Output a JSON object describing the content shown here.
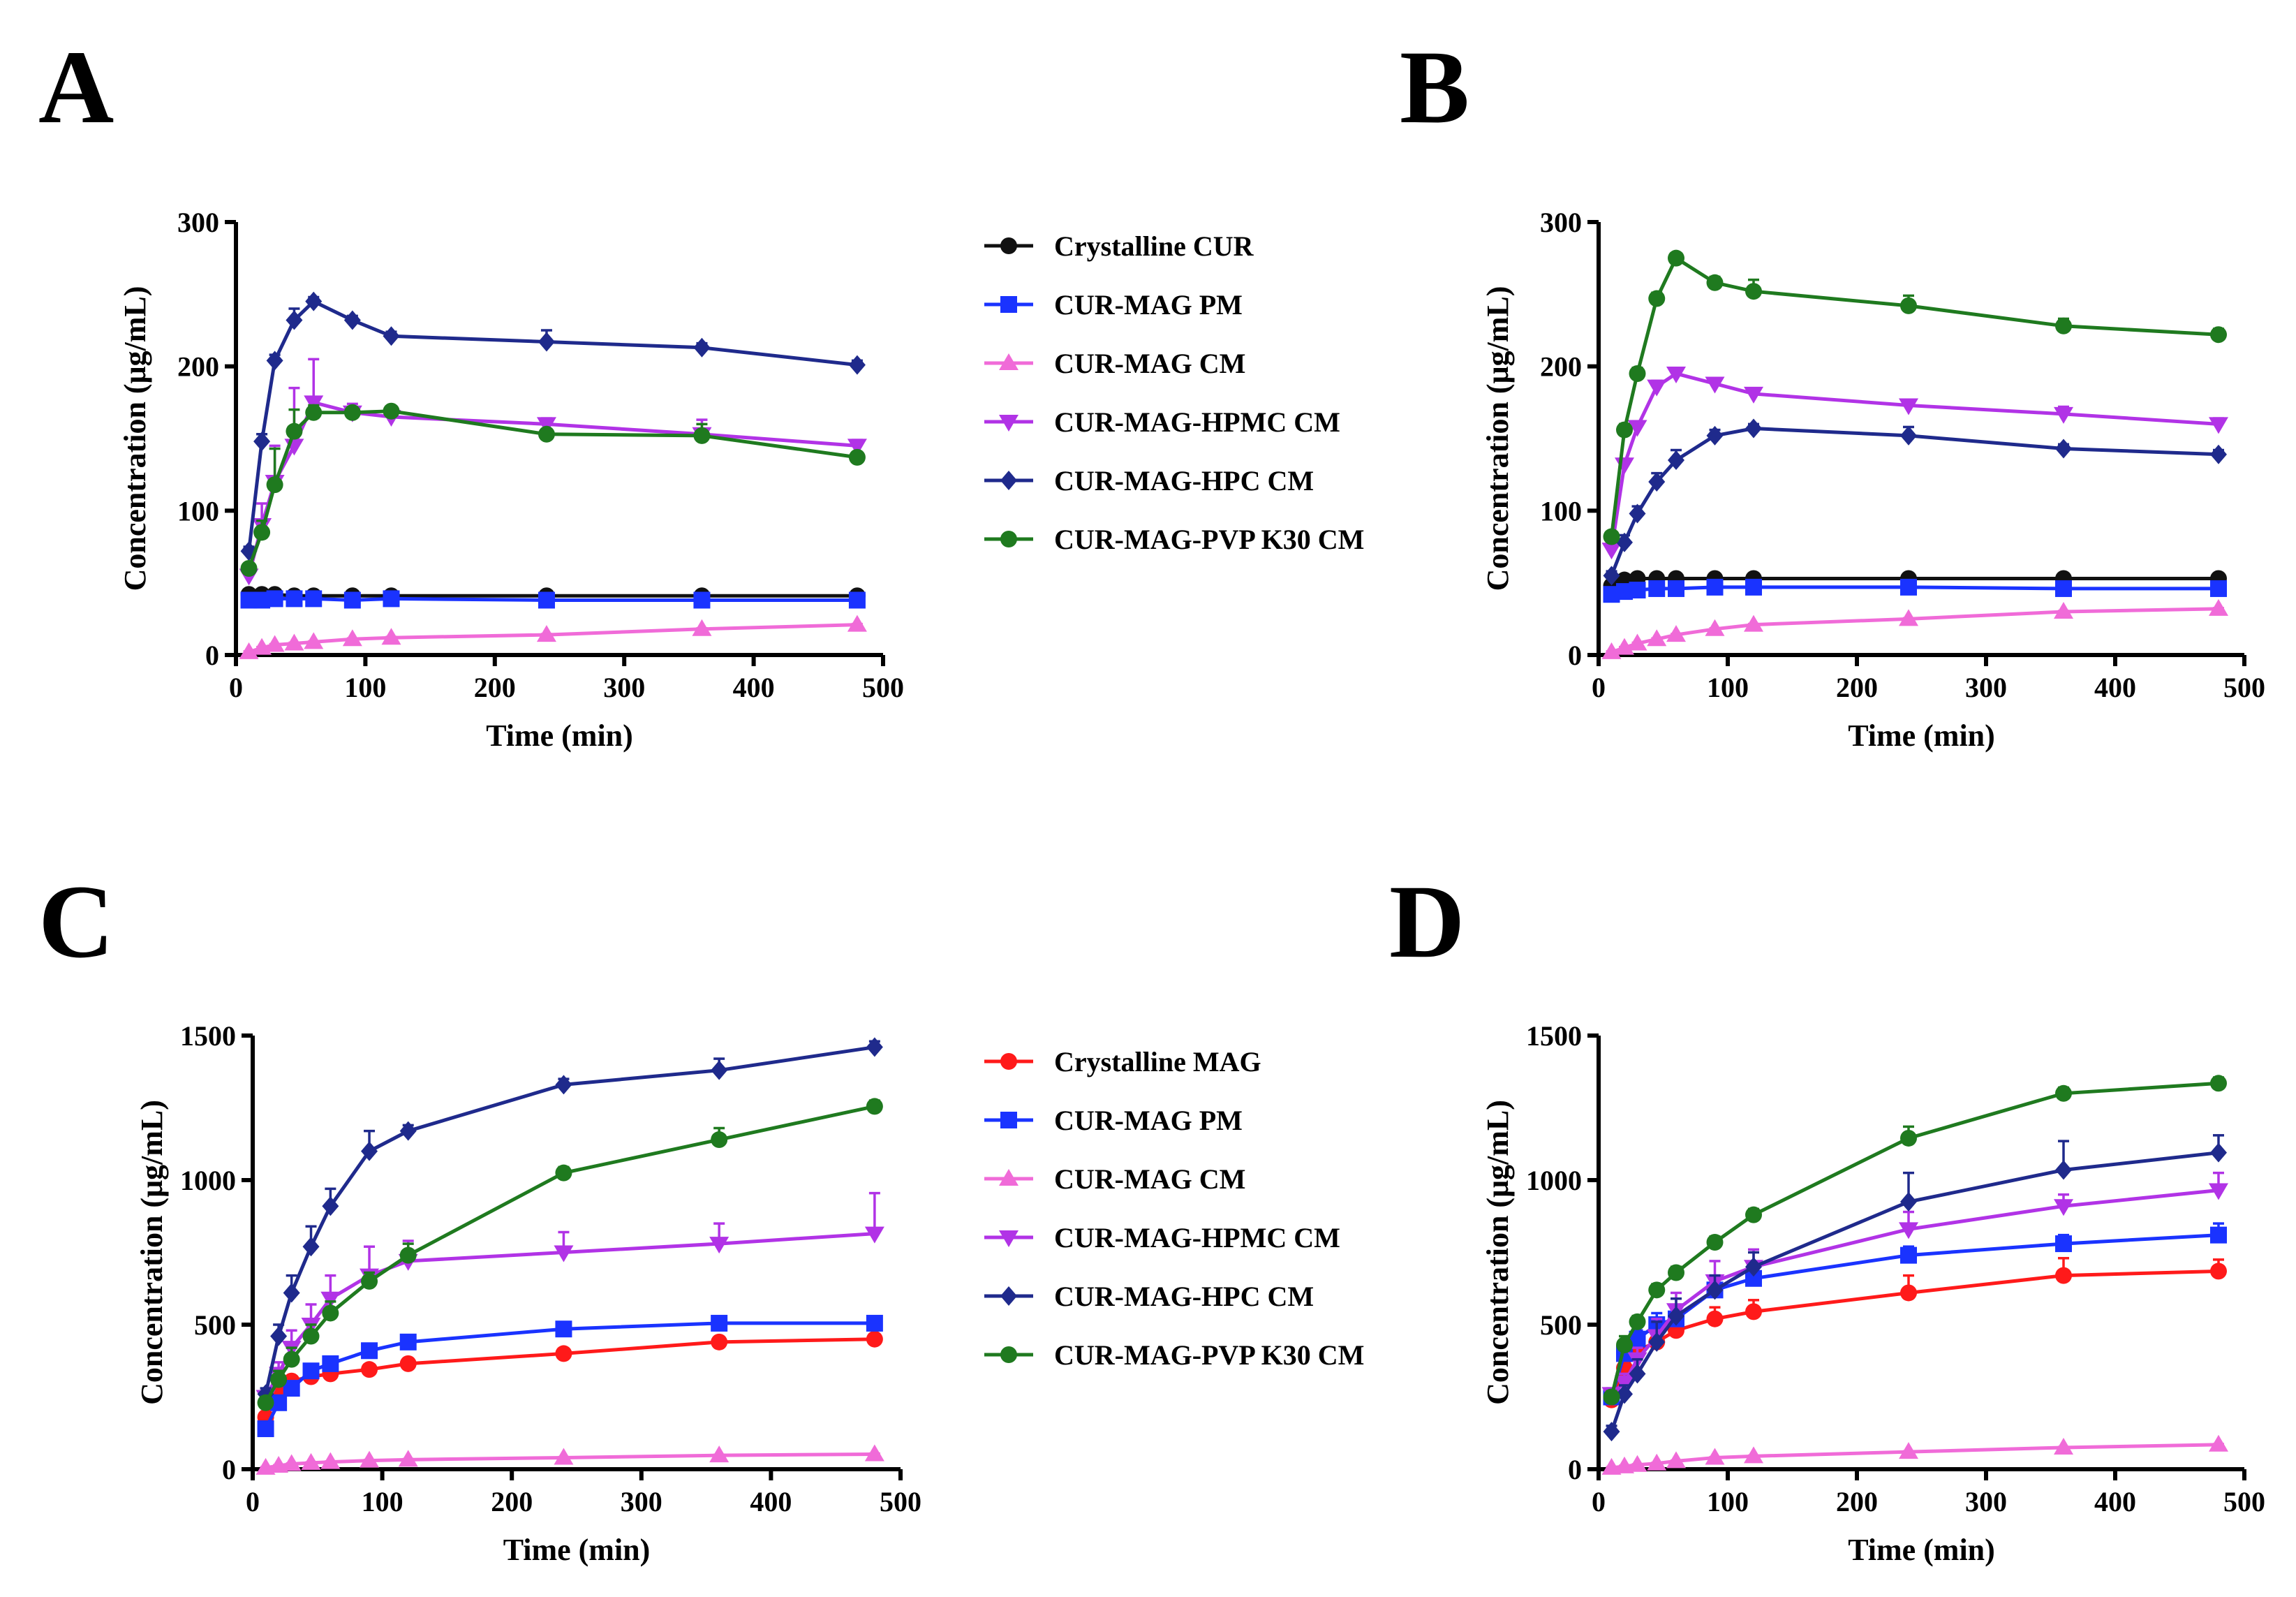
{
  "colors": {
    "black": "#111111",
    "blue": "#1a33ff",
    "pink": "#f06bd8",
    "purple": "#b133e6",
    "navy": "#1f2a8c",
    "green": "#1f7a1f",
    "red": "#ff1a1a"
  },
  "chart_data": [
    {
      "panel": "A",
      "type": "line",
      "title": "",
      "xlabel": "Time (min)",
      "ylabel": "Concentration (μg/mL)",
      "xlim": [
        0,
        500
      ],
      "ylim": [
        0,
        300
      ],
      "xticks": [
        "0",
        "100",
        "200",
        "300",
        "400",
        "500"
      ],
      "yticks": [
        "0",
        "100",
        "200",
        "300"
      ],
      "legend_position": "right",
      "x": [
        10,
        20,
        30,
        45,
        60,
        90,
        120,
        240,
        360,
        480
      ],
      "series": [
        {
          "name": "Crystalline CUR",
          "marker": "circle",
          "color": "black",
          "values": [
            42,
            42,
            42,
            41,
            41,
            41,
            41,
            41,
            41,
            41
          ],
          "errors": [
            1,
            1,
            1,
            1,
            1,
            1,
            1,
            1,
            1,
            1
          ]
        },
        {
          "name": "CUR-MAG PM",
          "marker": "square",
          "color": "blue",
          "values": [
            38,
            38,
            39,
            39,
            39,
            38,
            39,
            38,
            38,
            38
          ],
          "errors": [
            1,
            1,
            1,
            1,
            1,
            1,
            1,
            1,
            1,
            1
          ]
        },
        {
          "name": "CUR-MAG CM",
          "marker": "triangle-up",
          "color": "pink",
          "values": [
            2,
            5,
            7,
            8,
            9,
            11,
            12,
            14,
            18,
            21
          ],
          "errors": [
            0.5,
            0.5,
            0.5,
            0.5,
            0.5,
            0.5,
            0.5,
            0.5,
            0.5,
            0.5
          ]
        },
        {
          "name": "CUR-MAG-HPMC CM",
          "marker": "triangle-down",
          "color": "purple",
          "values": [
            55,
            90,
            120,
            145,
            175,
            168,
            165,
            160,
            153,
            145
          ],
          "errors": [
            5,
            15,
            25,
            40,
            30,
            6,
            4,
            4,
            10,
            4
          ]
        },
        {
          "name": "CUR-MAG-HPC CM",
          "marker": "diamond",
          "color": "navy",
          "values": [
            72,
            148,
            204,
            232,
            245,
            232,
            221,
            217,
            213,
            201
          ],
          "errors": [
            3,
            5,
            4,
            8,
            3,
            3,
            3,
            8,
            3,
            3
          ]
        },
        {
          "name": "CUR-MAG-PVP K30 CM",
          "marker": "circle",
          "color": "green",
          "values": [
            60,
            85,
            118,
            155,
            168,
            168,
            169,
            153,
            152,
            137
          ],
          "errors": [
            3,
            8,
            25,
            15,
            5,
            3,
            3,
            3,
            8,
            3
          ]
        }
      ]
    },
    {
      "panel": "B",
      "type": "line",
      "title": "",
      "xlabel": "Time (min)",
      "ylabel": "Concentration (μg/mL)",
      "xlim": [
        0,
        500
      ],
      "ylim": [
        0,
        300
      ],
      "xticks": [
        "0",
        "100",
        "200",
        "300",
        "400",
        "500"
      ],
      "yticks": [
        "0",
        "100",
        "200",
        "300"
      ],
      "legend_position": "shared with panel A",
      "x": [
        10,
        20,
        30,
        45,
        60,
        90,
        120,
        240,
        360,
        480
      ],
      "series": [
        {
          "name": "Crystalline CUR",
          "marker": "circle",
          "color": "black",
          "values": [
            48,
            52,
            53,
            53,
            53,
            53,
            53,
            53,
            53,
            53
          ],
          "errors": [
            1,
            1,
            1,
            1,
            1,
            1,
            1,
            1,
            1,
            1
          ]
        },
        {
          "name": "CUR-MAG PM",
          "marker": "square",
          "color": "blue",
          "values": [
            42,
            44,
            45,
            46,
            46,
            47,
            47,
            47,
            46,
            46
          ],
          "errors": [
            1,
            1,
            1,
            1,
            1,
            1,
            1,
            1,
            1,
            1
          ]
        },
        {
          "name": "CUR-MAG CM",
          "marker": "triangle-up",
          "color": "pink",
          "values": [
            2,
            5,
            8,
            11,
            14,
            18,
            21,
            25,
            30,
            32
          ],
          "errors": [
            0.5,
            0.5,
            0.5,
            0.5,
            0.5,
            0.5,
            0.5,
            0.5,
            0.5,
            0.5
          ]
        },
        {
          "name": "CUR-MAG-HPMC CM",
          "marker": "triangle-down",
          "color": "purple",
          "values": [
            73,
            132,
            158,
            186,
            195,
            188,
            181,
            173,
            167,
            160
          ],
          "errors": [
            3,
            4,
            4,
            4,
            3,
            3,
            3,
            3,
            5,
            4
          ]
        },
        {
          "name": "CUR-MAG-HPC CM",
          "marker": "diamond",
          "color": "navy",
          "values": [
            55,
            78,
            98,
            120,
            135,
            152,
            157,
            152,
            143,
            139
          ],
          "errors": [
            3,
            5,
            5,
            6,
            7,
            4,
            3,
            6,
            3,
            3
          ]
        },
        {
          "name": "CUR-MAG-PVP K30 CM",
          "marker": "circle",
          "color": "green",
          "values": [
            82,
            156,
            195,
            247,
            275,
            258,
            252,
            242,
            228,
            222
          ],
          "errors": [
            3,
            4,
            4,
            4,
            3,
            4,
            8,
            7,
            5,
            4
          ]
        }
      ]
    },
    {
      "panel": "C",
      "type": "line",
      "title": "",
      "xlabel": "Time (min)",
      "ylabel": "Concentration (μg/mL)",
      "xlim": [
        0,
        500
      ],
      "ylim": [
        0,
        1500
      ],
      "xticks": [
        "0",
        "100",
        "200",
        "300",
        "400",
        "500"
      ],
      "yticks": [
        "0",
        "500",
        "1000",
        "1500"
      ],
      "legend_position": "right",
      "x": [
        10,
        20,
        30,
        45,
        60,
        90,
        120,
        240,
        360,
        480
      ],
      "series": [
        {
          "name": "Crystalline MAG",
          "marker": "circle",
          "color": "red",
          "values": [
            180,
            270,
            305,
            320,
            330,
            345,
            365,
            400,
            440,
            450
          ],
          "errors": [
            8,
            8,
            8,
            8,
            8,
            8,
            8,
            8,
            8,
            8
          ]
        },
        {
          "name": "CUR-MAG PM",
          "marker": "square",
          "color": "blue",
          "values": [
            140,
            230,
            280,
            340,
            365,
            410,
            440,
            485,
            505,
            505
          ],
          "errors": [
            10,
            10,
            10,
            10,
            10,
            10,
            10,
            10,
            10,
            10
          ]
        },
        {
          "name": "CUR-MAG CM",
          "marker": "triangle-up",
          "color": "pink",
          "values": [
            5,
            12,
            18,
            22,
            25,
            30,
            33,
            40,
            48,
            52
          ],
          "errors": [
            2,
            2,
            2,
            2,
            2,
            2,
            2,
            2,
            2,
            2
          ]
        },
        {
          "name": "CUR-MAG-HPMC CM",
          "marker": "triangle-down",
          "color": "purple",
          "values": [
            250,
            330,
            420,
            500,
            590,
            670,
            720,
            750,
            780,
            815
          ],
          "errors": [
            20,
            40,
            60,
            70,
            80,
            100,
            70,
            70,
            70,
            140
          ]
        },
        {
          "name": "CUR-MAG-HPC CM",
          "marker": "diamond",
          "color": "navy",
          "values": [
            260,
            460,
            610,
            770,
            910,
            1100,
            1170,
            1330,
            1380,
            1460
          ],
          "errors": [
            20,
            40,
            60,
            70,
            60,
            70,
            20,
            20,
            40,
            20
          ]
        },
        {
          "name": "CUR-MAG-PVP K30 CM",
          "marker": "circle",
          "color": "green",
          "values": [
            230,
            310,
            380,
            460,
            540,
            650,
            740,
            1025,
            1140,
            1255
          ],
          "errors": [
            20,
            30,
            40,
            40,
            40,
            30,
            40,
            20,
            40,
            20
          ]
        }
      ]
    },
    {
      "panel": "D",
      "type": "line",
      "title": "",
      "xlabel": "Time (min)",
      "ylabel": "Concentration (μg/mL)",
      "xlim": [
        0,
        500
      ],
      "ylim": [
        0,
        1500
      ],
      "xticks": [
        "0",
        "100",
        "200",
        "300",
        "400",
        "500"
      ],
      "yticks": [
        "0",
        "500",
        "1000",
        "1500"
      ],
      "legend_position": "shared with panel C",
      "x": [
        10,
        20,
        30,
        45,
        60,
        90,
        120,
        240,
        360,
        480
      ],
      "series": [
        {
          "name": "Crystalline MAG",
          "marker": "circle",
          "color": "red",
          "values": [
            240,
            350,
            410,
            440,
            480,
            520,
            545,
            610,
            670,
            685
          ],
          "errors": [
            20,
            30,
            30,
            40,
            40,
            40,
            40,
            60,
            60,
            40
          ]
        },
        {
          "name": "CUR-MAG PM",
          "marker": "square",
          "color": "blue",
          "values": [
            250,
            400,
            450,
            500,
            520,
            620,
            660,
            740,
            780,
            810
          ],
          "errors": [
            20,
            30,
            30,
            40,
            40,
            40,
            40,
            30,
            30,
            40
          ]
        },
        {
          "name": "CUR-MAG CM",
          "marker": "triangle-up",
          "color": "pink",
          "values": [
            5,
            10,
            15,
            20,
            28,
            40,
            45,
            60,
            75,
            85
          ],
          "errors": [
            2,
            2,
            2,
            2,
            2,
            2,
            2,
            2,
            2,
            2
          ]
        },
        {
          "name": "CUR-MAG-HPMC CM",
          "marker": "triangle-down",
          "color": "purple",
          "values": [
            260,
            300,
            380,
            460,
            550,
            650,
            700,
            830,
            910,
            965
          ],
          "errors": [
            20,
            30,
            40,
            60,
            60,
            70,
            60,
            60,
            40,
            60
          ]
        },
        {
          "name": "CUR-MAG-HPC CM",
          "marker": "diamond",
          "color": "navy",
          "values": [
            130,
            260,
            330,
            440,
            530,
            620,
            700,
            925,
            1035,
            1095
          ],
          "errors": [
            20,
            30,
            50,
            70,
            60,
            50,
            50,
            100,
            100,
            60
          ]
        },
        {
          "name": "CUR-MAG-PVP K30 CM",
          "marker": "circle",
          "color": "green",
          "values": [
            250,
            430,
            510,
            620,
            680,
            785,
            880,
            1145,
            1300,
            1335
          ],
          "errors": [
            20,
            30,
            20,
            20,
            20,
            20,
            20,
            40,
            20,
            20
          ]
        }
      ]
    }
  ]
}
